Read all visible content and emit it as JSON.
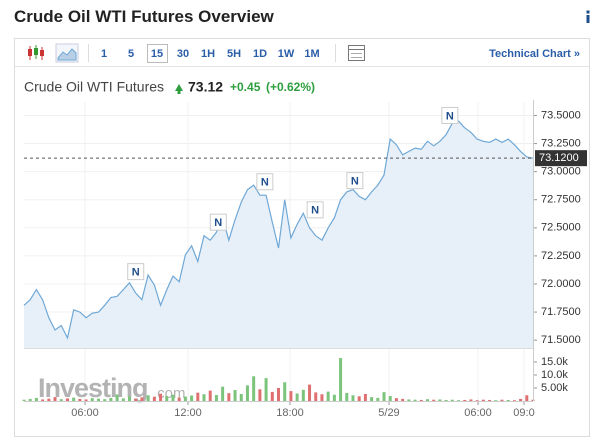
{
  "title": "Crude Oil WTI Futures Overview",
  "toolbar": {
    "intervals": [
      "1",
      "5",
      "15",
      "30",
      "1H",
      "5H",
      "1D",
      "1W",
      "1M"
    ],
    "link": "Technical Chart »"
  },
  "quote": {
    "name": "Crude Oil WTI Futures",
    "price": "73.12",
    "change": "+0.45",
    "change_pct": "(+0.62%)"
  },
  "watermark": {
    "main": "Investing",
    "suffix": ".com"
  },
  "chart_data": [
    {
      "type": "line",
      "color": "#6fa8d6",
      "area_color": "#e7eff8",
      "grid": true,
      "values": [
        71.81,
        71.86,
        71.95,
        71.86,
        71.7,
        71.59,
        71.63,
        71.52,
        71.77,
        71.75,
        71.7,
        71.74,
        71.75,
        71.81,
        71.88,
        71.89,
        71.95,
        72.01,
        71.92,
        71.86,
        72.08,
        71.99,
        71.81,
        71.95,
        72.07,
        72.02,
        72.26,
        72.34,
        72.2,
        72.43,
        72.39,
        72.46,
        72.59,
        72.39,
        72.57,
        72.73,
        72.84,
        72.88,
        72.79,
        72.79,
        72.55,
        72.32,
        72.75,
        72.41,
        72.53,
        72.63,
        72.5,
        72.43,
        72.39,
        72.5,
        72.59,
        72.75,
        72.82,
        72.84,
        72.78,
        72.75,
        72.82,
        72.88,
        72.97,
        73.29,
        73.24,
        73.15,
        73.18,
        73.21,
        73.2,
        73.27,
        73.23,
        73.27,
        73.33,
        73.43,
        73.45,
        73.39,
        73.35,
        73.29,
        73.27,
        73.26,
        73.29,
        73.26,
        73.29,
        73.24,
        73.18,
        73.13,
        73.12
      ],
      "xlim": [
        0,
        82
      ],
      "xticks": [
        {
          "value": 9.83,
          "label": "06:00"
        },
        {
          "value": 26.42,
          "label": "12:00"
        },
        {
          "value": 42.85,
          "label": "18:00"
        },
        {
          "value": 58.8,
          "label": "5/29"
        },
        {
          "value": 73.14,
          "label": "06:00"
        },
        {
          "value": 80.55,
          "label": "09:0"
        }
      ],
      "ylim": [
        71.43,
        73.62
      ],
      "yticks": [
        {
          "value": 71.5,
          "label": "71.5000"
        },
        {
          "value": 71.75,
          "label": "71.7500"
        },
        {
          "value": 72,
          "label": "72.0000"
        },
        {
          "value": 72.25,
          "label": "72.2500"
        },
        {
          "value": 72.5,
          "label": "72.5000"
        },
        {
          "value": 72.75,
          "label": "72.7500"
        },
        {
          "value": 73,
          "label": "73.0000"
        },
        {
          "value": 73.25,
          "label": "73.2500"
        },
        {
          "value": 73.5,
          "label": "73.5000"
        }
      ],
      "current": {
        "value": 73.12,
        "label": "73.1200"
      },
      "annotations": [
        {
          "x": 18.0,
          "y": 72.11,
          "text": "N"
        },
        {
          "x": 31.3,
          "y": 72.55,
          "text": "N"
        },
        {
          "x": 38.8,
          "y": 72.91,
          "text": "N"
        },
        {
          "x": 46.9,
          "y": 72.66,
          "text": "N"
        },
        {
          "x": 53.3,
          "y": 72.92,
          "text": "N"
        },
        {
          "x": 68.6,
          "y": 73.5,
          "text": "N"
        }
      ]
    },
    {
      "type": "bar",
      "up_color": "#7cc47c",
      "down_color": "#e07070",
      "values": [
        500,
        800,
        1200,
        600,
        900,
        1500,
        700,
        1000,
        1300,
        800,
        600,
        1100,
        900,
        700,
        1200,
        2500,
        1000,
        1800,
        900,
        1400,
        2200,
        1600,
        2800,
        1900,
        2400,
        1300,
        1700,
        2100,
        3200,
        2600,
        4000,
        2300,
        5500,
        3000,
        4200,
        2700,
        6000,
        9500,
        4500,
        8800,
        3500,
        5000,
        7200,
        3800,
        2900,
        4300,
        6300,
        3300,
        2600,
        3600,
        2400,
        16500,
        3100,
        2200,
        1800,
        2700,
        1500,
        1200,
        3400,
        1900,
        1100,
        800,
        600,
        500,
        400,
        700,
        500,
        600,
        400,
        500,
        300,
        400,
        600,
        300,
        500,
        400,
        300,
        500,
        400,
        300,
        800,
        2200,
        500
      ],
      "xlim": [
        0,
        82
      ],
      "ylim": [
        0,
        19600
      ],
      "yticks": [
        {
          "value": 5000,
          "label": "5.00k"
        },
        {
          "value": 10000,
          "label": "10.0k"
        },
        {
          "value": 15000,
          "label": "15.0k"
        }
      ]
    }
  ]
}
